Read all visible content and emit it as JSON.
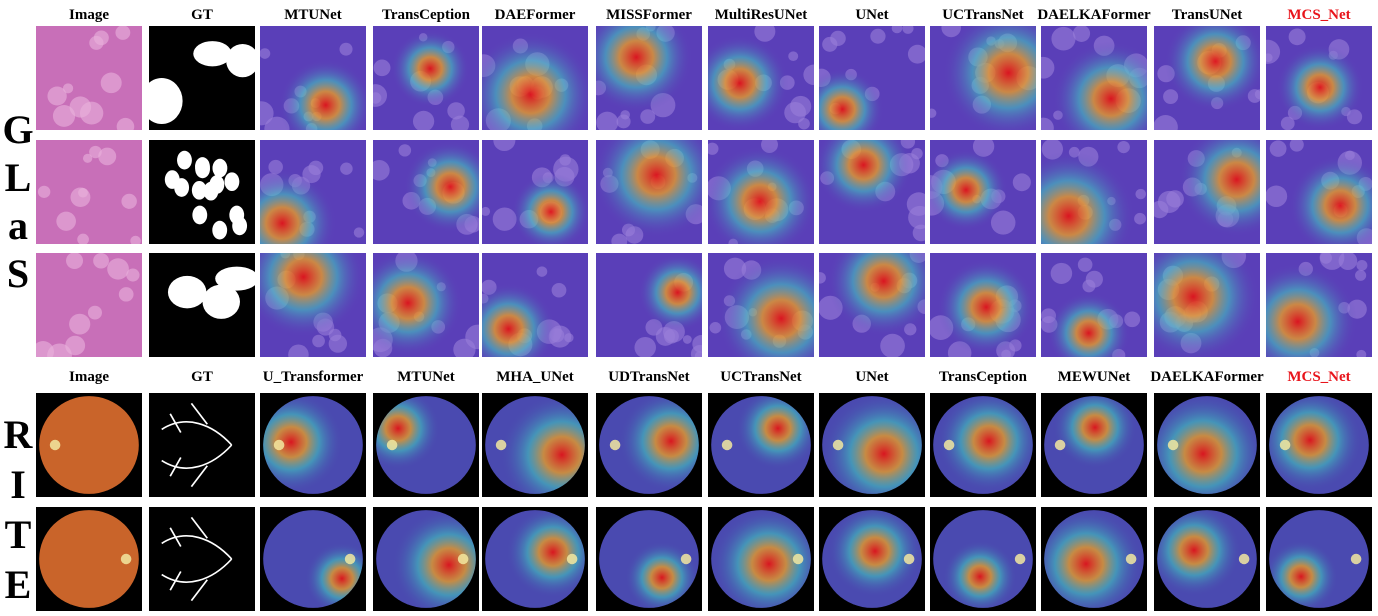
{
  "glas": {
    "row_label_letters": [
      "G",
      "L",
      "a",
      "S"
    ],
    "headers": [
      "Image",
      "GT",
      "MTUNet",
      "TransCeption",
      "DAEFormer",
      "MISSFormer",
      "MultiResUNet",
      "UNet",
      "UCTransNet",
      "DAELKAFormer",
      "TransUNet",
      "MCS_Net"
    ],
    "highlight_index": 11
  },
  "rite": {
    "row_label_letters": [
      "R",
      "I",
      "T",
      "E"
    ],
    "headers": [
      "Image",
      "GT",
      "U_Transformer",
      "MTUNet",
      "MHA_UNet",
      "UDTransNet",
      "UCTransNet",
      "UNet",
      "TransCeption",
      "MEWUNet",
      "DAELKAFormer",
      "MCS_Net"
    ],
    "highlight_index": 11
  },
  "colors": {
    "highlight_label": "#e8141b",
    "heat_low": "#3b2fb0",
    "heat_high": "#e01010",
    "tissue": "#c86fb8",
    "fundus": "#c9642a"
  }
}
